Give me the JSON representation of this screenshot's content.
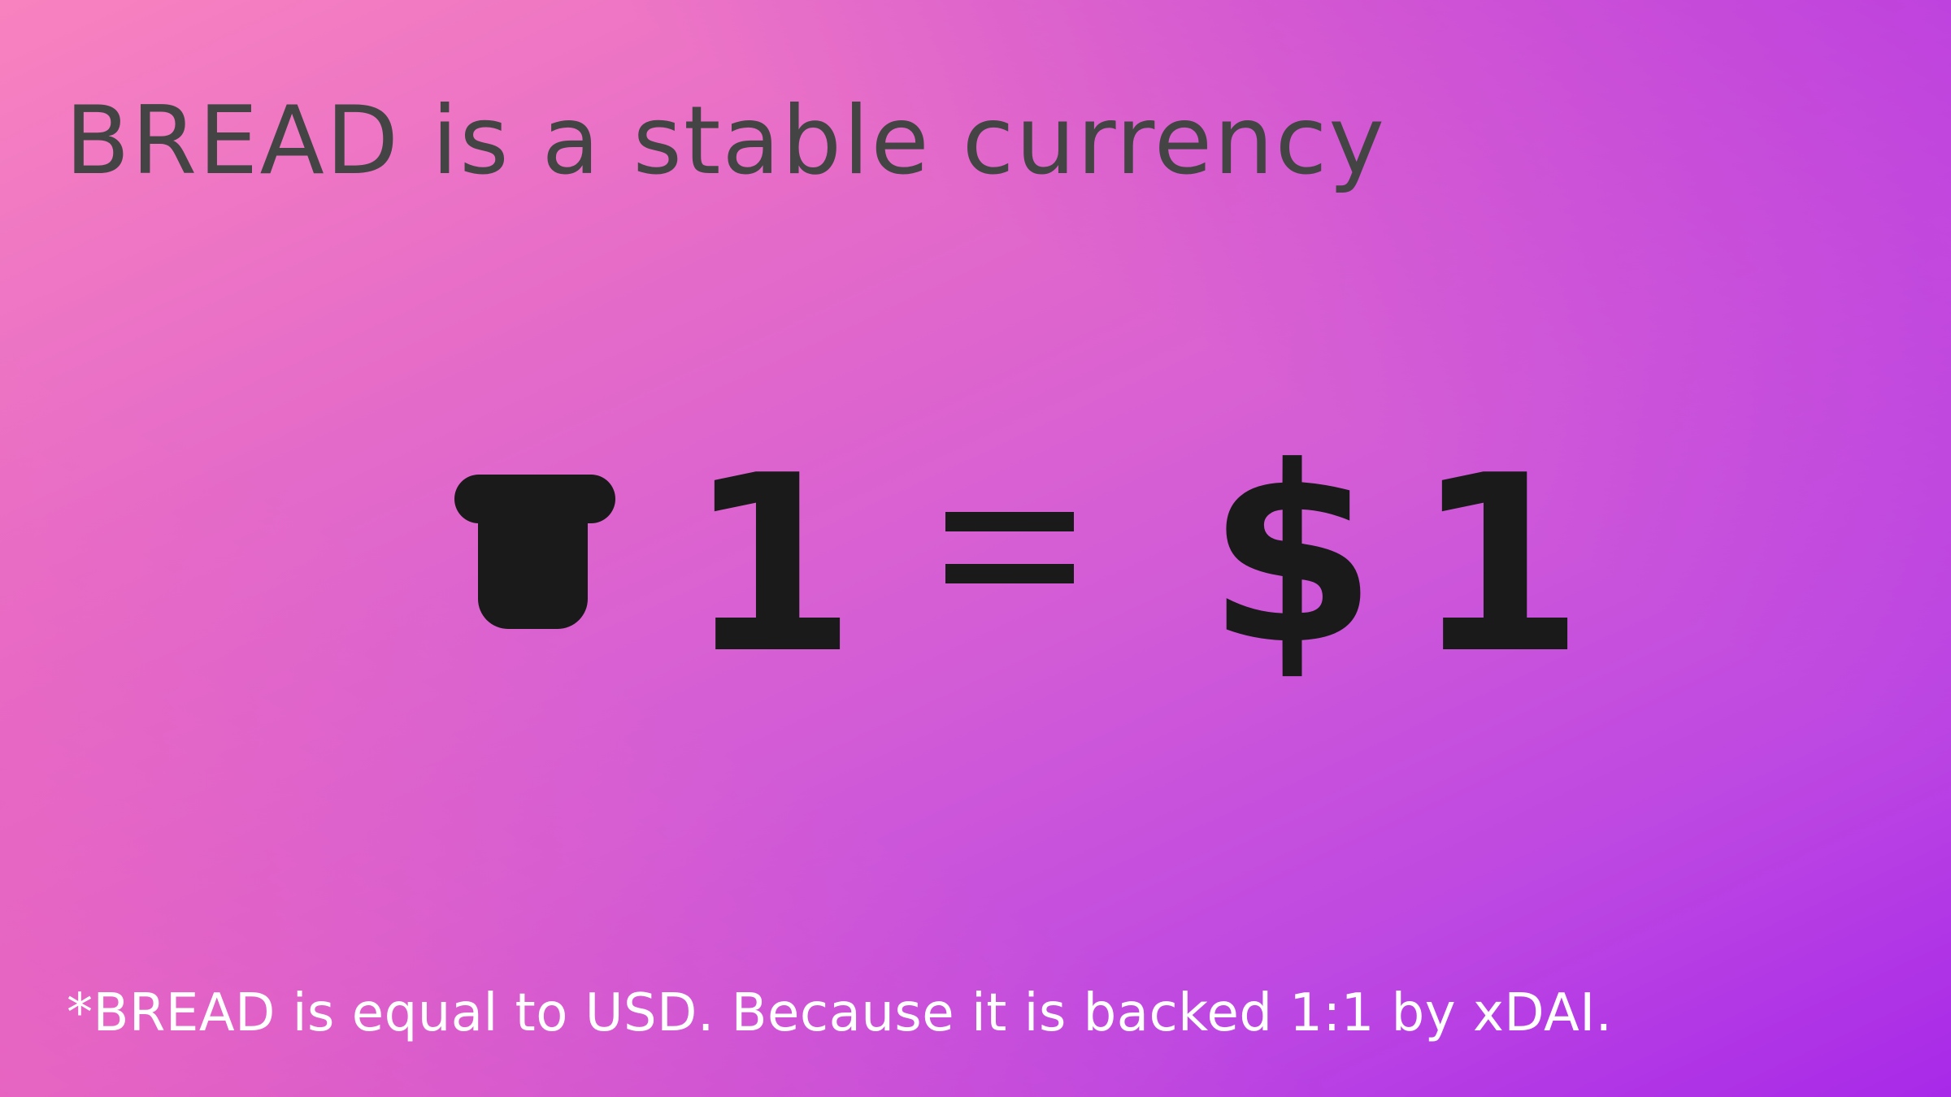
{
  "slide": {
    "title": "BREAD is a stable currency",
    "equation": {
      "left_amount": "1",
      "operator": "=",
      "currency_symbol": "$",
      "right_amount": "1",
      "left_icon": "bread-icon"
    },
    "footnote": "*BREAD is equal to USD. Because it is backed 1:1 by xDAI."
  },
  "colors": {
    "gradient_start": "#f882bf",
    "gradient_end": "#a829e8",
    "title": "#444444",
    "symbols": "#1a1a1a",
    "footnote": "#ffffff"
  }
}
